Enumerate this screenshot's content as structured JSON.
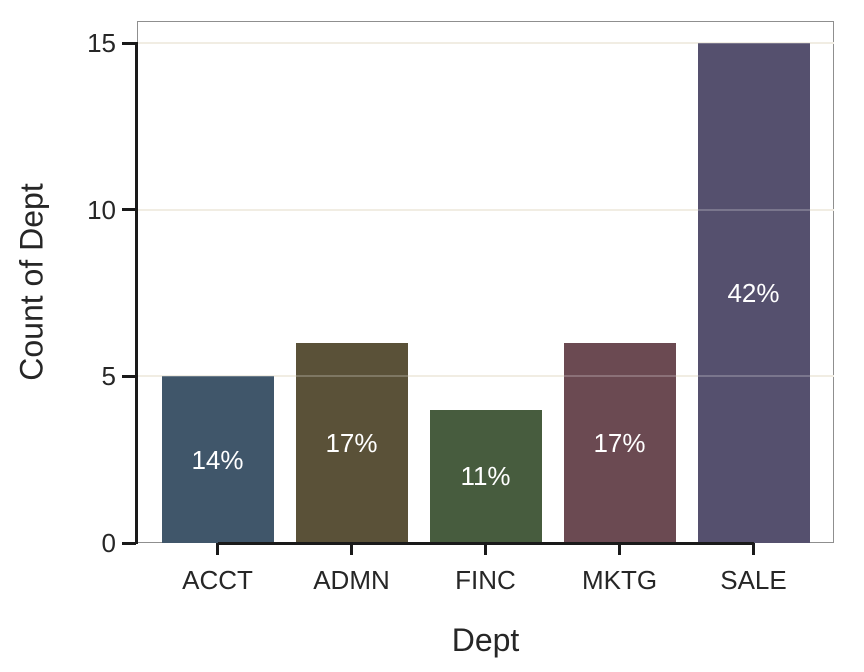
{
  "chart_data": {
    "type": "bar",
    "title": "",
    "xlabel": "Dept",
    "ylabel": "Count of Dept",
    "categories": [
      "ACCT",
      "ADMN",
      "FINC",
      "MKTG",
      "SALE"
    ],
    "values": [
      5,
      6,
      4,
      6,
      15
    ],
    "bar_labels": [
      "14%",
      "17%",
      "11%",
      "17%",
      "42%"
    ],
    "bar_colors": [
      "#40566a",
      "#5a5138",
      "#475c3e",
      "#6b4a52",
      "#55506e"
    ],
    "bar_label_color": "#ffffff",
    "yticks": [
      0,
      5,
      10,
      15
    ],
    "ylim": [
      0,
      15.66
    ],
    "grid": "horizontal",
    "legend": "none",
    "colors": {
      "gridline": "#ede8db",
      "axis_line": "#1a1a1a",
      "plot_border": "#8f8f8f",
      "text": "#262626",
      "background": "#ffffff"
    }
  }
}
